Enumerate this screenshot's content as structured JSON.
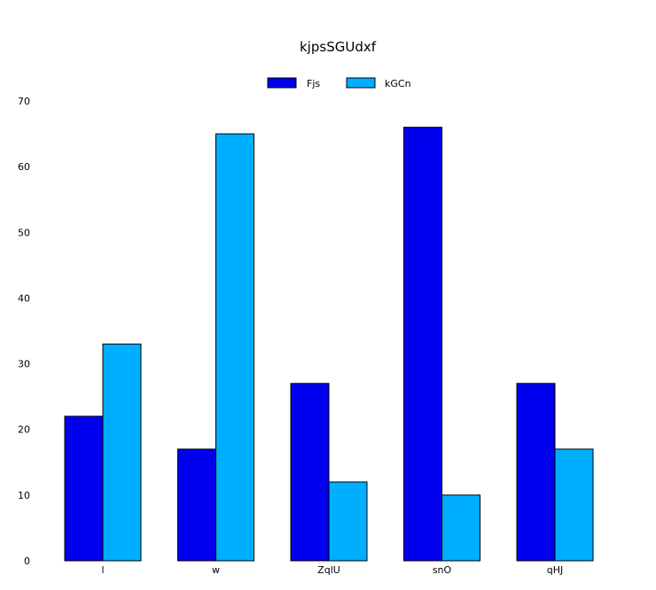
{
  "chart_data": {
    "type": "bar",
    "title": "kjpsSGUdxf",
    "xlabel": "",
    "ylabel": "",
    "categories": [
      "l",
      "w",
      "ZqlU",
      "snO",
      "qHJ"
    ],
    "series": [
      {
        "name": "Fjs",
        "values": [
          22,
          17,
          27,
          66,
          27
        ],
        "color": "#0000ee"
      },
      {
        "name": "kGCn",
        "values": [
          33,
          65,
          12,
          10,
          17
        ],
        "color": "#00aeff"
      }
    ],
    "ylim": [
      0,
      70
    ],
    "yticks": [
      "0",
      "10",
      "20",
      "30",
      "40",
      "50",
      "60",
      "70"
    ],
    "legend_position": "top-center",
    "grid": false
  }
}
